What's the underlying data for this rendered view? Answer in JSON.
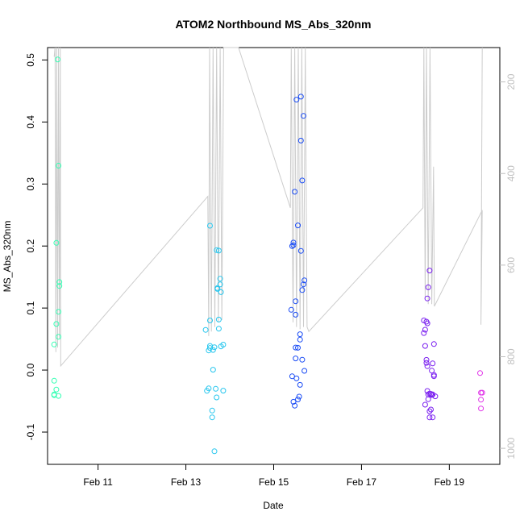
{
  "chart_data": {
    "type": "scatter",
    "title": "ATOM2 Northbound MS_Abs_320nm",
    "xlabel": "Date",
    "ylabel": "MS_Abs_320nm",
    "x_unit": "days of February",
    "xlim": [
      9.85,
      20.15
    ],
    "ylim": [
      -0.152,
      0.52
    ],
    "x_ticks": [
      {
        "value": 11,
        "label": "Feb 11"
      },
      {
        "value": 13,
        "label": "Feb 13"
      },
      {
        "value": 15,
        "label": "Feb 15"
      },
      {
        "value": 17,
        "label": "Feb 17"
      },
      {
        "value": 19,
        "label": "Feb 19"
      }
    ],
    "y_ticks": [
      {
        "value": -0.1,
        "label": "-0.1"
      },
      {
        "value": 0.0,
        "label": "0.0"
      },
      {
        "value": 0.1,
        "label": "0.1"
      },
      {
        "value": 0.2,
        "label": "0.2"
      },
      {
        "value": 0.3,
        "label": "0.3"
      },
      {
        "value": 0.4,
        "label": "0.4"
      },
      {
        "value": 0.5,
        "label": "0.5"
      }
    ],
    "right_axis": {
      "lim": [
        1035,
        125
      ],
      "ticks": [
        200,
        400,
        600,
        800,
        1000
      ],
      "color": "#bfbfbf"
    },
    "grid": false,
    "point_series": [
      {
        "color": "#33ffb3",
        "points": [
          [
            10.0,
            0.0413
          ],
          [
            10.0,
            -0.0172
          ],
          [
            10.0,
            -0.0393
          ],
          [
            10.0,
            -0.0405
          ],
          [
            10.05,
            -0.0314
          ],
          [
            10.05,
            0.205
          ],
          [
            10.05,
            0.0743
          ],
          [
            10.08,
            0.5007
          ],
          [
            10.1,
            0.3296
          ],
          [
            10.1,
            0.0941
          ],
          [
            10.1,
            0.0536
          ],
          [
            10.1,
            -0.0416
          ],
          [
            10.12,
            0.1356
          ],
          [
            10.12,
            0.1419
          ]
        ]
      },
      {
        "color": "#26c6ee",
        "points": [
          [
            13.45,
            0.0648
          ],
          [
            13.48,
            -0.0334
          ],
          [
            13.52,
            0.0317
          ],
          [
            13.52,
            -0.0296
          ],
          [
            13.55,
            0.08
          ],
          [
            13.55,
            0.2327
          ],
          [
            13.55,
            0.0389
          ],
          [
            13.55,
            0.0357
          ],
          [
            13.6,
            -0.0653
          ],
          [
            13.6,
            -0.0762
          ],
          [
            13.62,
            0.0006
          ],
          [
            13.62,
            0.0324
          ],
          [
            13.65,
            -0.1309
          ],
          [
            13.65,
            0.0368
          ],
          [
            13.68,
            -0.0302
          ],
          [
            13.7,
            -0.0441
          ],
          [
            13.7,
            0.1934
          ],
          [
            13.72,
            0.1308
          ],
          [
            13.72,
            0.1323
          ],
          [
            13.75,
            0.0667
          ],
          [
            13.75,
            0.0815
          ],
          [
            13.75,
            0.1926
          ],
          [
            13.78,
            0.1474
          ],
          [
            13.78,
            0.1381
          ],
          [
            13.8,
            0.1256
          ],
          [
            13.8,
            0.0382
          ],
          [
            13.85,
            -0.0332
          ],
          [
            13.85,
            0.041
          ]
        ]
      },
      {
        "color": "#1a4cf5",
        "points": [
          [
            15.4,
            0.0972
          ],
          [
            15.42,
            -0.0101
          ],
          [
            15.42,
            0.1999
          ],
          [
            15.45,
            0.2014
          ],
          [
            15.45,
            -0.0512
          ],
          [
            15.45,
            0.2056
          ],
          [
            15.48,
            0.2875
          ],
          [
            15.48,
            -0.0574
          ],
          [
            15.5,
            0.1109
          ],
          [
            15.5,
            0.0893
          ],
          [
            15.5,
            0.0363
          ],
          [
            15.5,
            0.0188
          ],
          [
            15.52,
            -0.0135
          ],
          [
            15.52,
            0.436
          ],
          [
            15.55,
            0.2333
          ],
          [
            15.55,
            -0.0474
          ],
          [
            15.55,
            0.0359
          ],
          [
            15.58,
            -0.0428
          ],
          [
            15.6,
            0.0491
          ],
          [
            15.6,
            0.0578
          ],
          [
            15.6,
            -0.0238
          ],
          [
            15.62,
            0.37
          ],
          [
            15.62,
            0.4409
          ],
          [
            15.62,
            0.1922
          ],
          [
            15.65,
            0.3057
          ],
          [
            15.65,
            0.0167
          ],
          [
            15.65,
            0.129
          ],
          [
            15.68,
            0.1382
          ],
          [
            15.68,
            0.4099
          ],
          [
            15.7,
            0.1446
          ],
          [
            15.7,
            -0.0012
          ]
        ]
      },
      {
        "color": "#7a1ff0",
        "points": [
          [
            18.42,
            0.08
          ],
          [
            18.42,
            0.0598
          ],
          [
            18.45,
            -0.0558
          ],
          [
            18.45,
            0.0651
          ],
          [
            18.45,
            0.039
          ],
          [
            18.48,
            0.0165
          ],
          [
            18.48,
            0.0781
          ],
          [
            18.48,
            0.0117
          ],
          [
            18.5,
            0.0753
          ],
          [
            18.5,
            0.0063
          ],
          [
            18.5,
            0.1155
          ],
          [
            18.5,
            -0.0337
          ],
          [
            18.52,
            -0.047
          ],
          [
            18.52,
            0.1334
          ],
          [
            18.52,
            -0.0392
          ],
          [
            18.55,
            -0.0663
          ],
          [
            18.55,
            -0.038
          ],
          [
            18.55,
            -0.0764
          ],
          [
            18.55,
            0.1605
          ],
          [
            18.58,
            -0.0636
          ],
          [
            18.58,
            -0.0384
          ],
          [
            18.6,
            -0.001
          ],
          [
            18.6,
            -0.0402
          ],
          [
            18.62,
            -0.0762
          ],
          [
            18.62,
            0.0108
          ],
          [
            18.62,
            -0.0393
          ],
          [
            18.65,
            -0.0079
          ],
          [
            18.65,
            -0.0099
          ],
          [
            18.65,
            0.0419
          ],
          [
            18.68,
            -0.0423
          ]
        ]
      },
      {
        "color": "#e033e8",
        "points": [
          [
            19.7,
            -0.0049
          ],
          [
            19.72,
            -0.0364
          ],
          [
            19.72,
            -0.0477
          ],
          [
            19.75,
            -0.0365
          ],
          [
            19.72,
            -0.0619
          ]
        ]
      }
    ],
    "depth_series": {
      "color": "#cccccc",
      "points": [
        [
          10.0,
          145
        ],
        [
          10.02,
          125
        ],
        [
          10.04,
          790
        ],
        [
          10.06,
          125
        ],
        [
          10.08,
          780
        ],
        [
          10.1,
          125
        ],
        [
          10.12,
          760
        ],
        [
          10.14,
          125
        ],
        [
          10.15,
          820
        ],
        [
          13.5,
          450
        ],
        [
          13.52,
          755
        ],
        [
          13.54,
          125
        ],
        [
          13.58,
          745
        ],
        [
          13.62,
          125
        ],
        [
          13.66,
          735
        ],
        [
          13.7,
          125
        ],
        [
          13.74,
          725
        ],
        [
          13.78,
          125
        ],
        [
          13.82,
          720
        ],
        [
          13.86,
          125
        ],
        [
          14.2,
          125
        ],
        [
          15.38,
          475
        ],
        [
          15.4,
          125
        ],
        [
          15.44,
          725
        ],
        [
          15.48,
          125
        ],
        [
          15.52,
          735
        ],
        [
          15.56,
          125
        ],
        [
          15.6,
          740
        ],
        [
          15.64,
          125
        ],
        [
          15.68,
          735
        ],
        [
          15.72,
          125
        ],
        [
          15.76,
          735
        ],
        [
          15.8,
          745
        ],
        [
          18.4,
          475
        ],
        [
          18.42,
          125
        ],
        [
          18.45,
          670
        ],
        [
          18.48,
          125
        ],
        [
          18.52,
          685
        ],
        [
          18.56,
          125
        ],
        [
          18.6,
          685
        ],
        [
          18.64,
          385
        ],
        [
          18.66,
          690
        ],
        [
          19.75,
          480
        ],
        [
          19.72,
          730
        ],
        [
          19.75,
          125
        ]
      ]
    }
  }
}
